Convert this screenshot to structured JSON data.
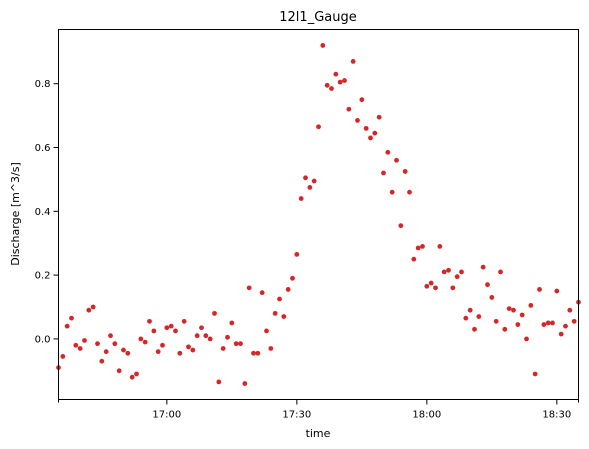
{
  "chart_data": {
    "type": "scatter",
    "title": "12l1_Gauge",
    "xlabel": "time",
    "ylabel": "Discharge [m^3/s]",
    "x_unit": "minutes since 16:35 on the time axis",
    "xlim": [
      0,
      120
    ],
    "ylim": [
      -0.19,
      0.97
    ],
    "x_ticks": [
      {
        "value": 25,
        "label": "17:00"
      },
      {
        "value": 55,
        "label": "17:30"
      },
      {
        "value": 85,
        "label": "18:00"
      },
      {
        "value": 115,
        "label": "18:30"
      }
    ],
    "x_minor_ticks": [
      0,
      120
    ],
    "y_ticks": [
      {
        "value": 0.0,
        "label": "0.0"
      },
      {
        "value": 0.2,
        "label": "0.2"
      },
      {
        "value": 0.4,
        "label": "0.4"
      },
      {
        "value": 0.6,
        "label": "0.6"
      },
      {
        "value": 0.8,
        "label": "0.8"
      }
    ],
    "grid": false,
    "marker_color": "#d62728",
    "series": [
      {
        "name": "",
        "points": [
          [
            0,
            -0.09
          ],
          [
            1,
            -0.055
          ],
          [
            2,
            0.04
          ],
          [
            3,
            0.065
          ],
          [
            4,
            -0.02
          ],
          [
            5,
            -0.03
          ],
          [
            6,
            -0.005
          ],
          [
            7,
            0.09
          ],
          [
            8,
            0.1
          ],
          [
            9,
            -0.015
          ],
          [
            10,
            -0.07
          ],
          [
            11,
            -0.04
          ],
          [
            12,
            0.01
          ],
          [
            13,
            -0.015
          ],
          [
            14,
            -0.1
          ],
          [
            15,
            -0.035
          ],
          [
            16,
            -0.045
          ],
          [
            17,
            -0.12
          ],
          [
            18,
            -0.11
          ],
          [
            19,
            0.0
          ],
          [
            20,
            -0.01
          ],
          [
            21,
            0.055
          ],
          [
            22,
            0.025
          ],
          [
            23,
            -0.04
          ],
          [
            24,
            -0.02
          ],
          [
            25,
            0.035
          ],
          [
            26,
            0.04
          ],
          [
            27,
            0.025
          ],
          [
            28,
            -0.045
          ],
          [
            29,
            0.055
          ],
          [
            30,
            -0.025
          ],
          [
            31,
            -0.035
          ],
          [
            32,
            0.01
          ],
          [
            33,
            0.035
          ],
          [
            34,
            0.01
          ],
          [
            35,
            0.0
          ],
          [
            36,
            0.08
          ],
          [
            37,
            -0.135
          ],
          [
            38,
            -0.03
          ],
          [
            39,
            0.005
          ],
          [
            40,
            0.05
          ],
          [
            41,
            -0.015
          ],
          [
            42,
            -0.015
          ],
          [
            43,
            -0.14
          ],
          [
            44,
            0.16
          ],
          [
            45,
            -0.045
          ],
          [
            46,
            -0.045
          ],
          [
            47,
            0.145
          ],
          [
            48,
            0.025
          ],
          [
            49,
            -0.03
          ],
          [
            50,
            0.08
          ],
          [
            51,
            0.125
          ],
          [
            52,
            0.07
          ],
          [
            53,
            0.155
          ],
          [
            54,
            0.19
          ],
          [
            55,
            0.265
          ],
          [
            56,
            0.44
          ],
          [
            57,
            0.505
          ],
          [
            58,
            0.475
          ],
          [
            59,
            0.495
          ],
          [
            60,
            0.665
          ],
          [
            61,
            0.92
          ],
          [
            62,
            0.795
          ],
          [
            63,
            0.785
          ],
          [
            64,
            0.83
          ],
          [
            65,
            0.805
          ],
          [
            66,
            0.81
          ],
          [
            67,
            0.72
          ],
          [
            68,
            0.87
          ],
          [
            69,
            0.685
          ],
          [
            70,
            0.75
          ],
          [
            71,
            0.66
          ],
          [
            72,
            0.63
          ],
          [
            73,
            0.645
          ],
          [
            74,
            0.695
          ],
          [
            75,
            0.52
          ],
          [
            76,
            0.585
          ],
          [
            77,
            0.46
          ],
          [
            78,
            0.56
          ],
          [
            79,
            0.355
          ],
          [
            80,
            0.525
          ],
          [
            81,
            0.46
          ],
          [
            82,
            0.25
          ],
          [
            83,
            0.285
          ],
          [
            84,
            0.29
          ],
          [
            85,
            0.165
          ],
          [
            86,
            0.175
          ],
          [
            87,
            0.16
          ],
          [
            88,
            0.29
          ],
          [
            89,
            0.21
          ],
          [
            90,
            0.215
          ],
          [
            91,
            0.16
          ],
          [
            92,
            0.195
          ],
          [
            93,
            0.21
          ],
          [
            94,
            0.065
          ],
          [
            95,
            0.09
          ],
          [
            96,
            0.03
          ],
          [
            97,
            0.07
          ],
          [
            98,
            0.225
          ],
          [
            99,
            0.17
          ],
          [
            100,
            0.13
          ],
          [
            101,
            0.055
          ],
          [
            102,
            0.21
          ],
          [
            103,
            0.03
          ],
          [
            104,
            0.095
          ],
          [
            105,
            0.09
          ],
          [
            106,
            0.045
          ],
          [
            107,
            0.075
          ],
          [
            108,
            0.0
          ],
          [
            109,
            0.105
          ],
          [
            110,
            -0.11
          ],
          [
            111,
            0.155
          ],
          [
            112,
            0.045
          ],
          [
            113,
            0.05
          ],
          [
            114,
            0.05
          ],
          [
            115,
            0.15
          ],
          [
            116,
            0.015
          ],
          [
            117,
            0.04
          ],
          [
            118,
            0.09
          ],
          [
            119,
            0.055
          ],
          [
            120,
            0.115
          ]
        ]
      }
    ]
  }
}
